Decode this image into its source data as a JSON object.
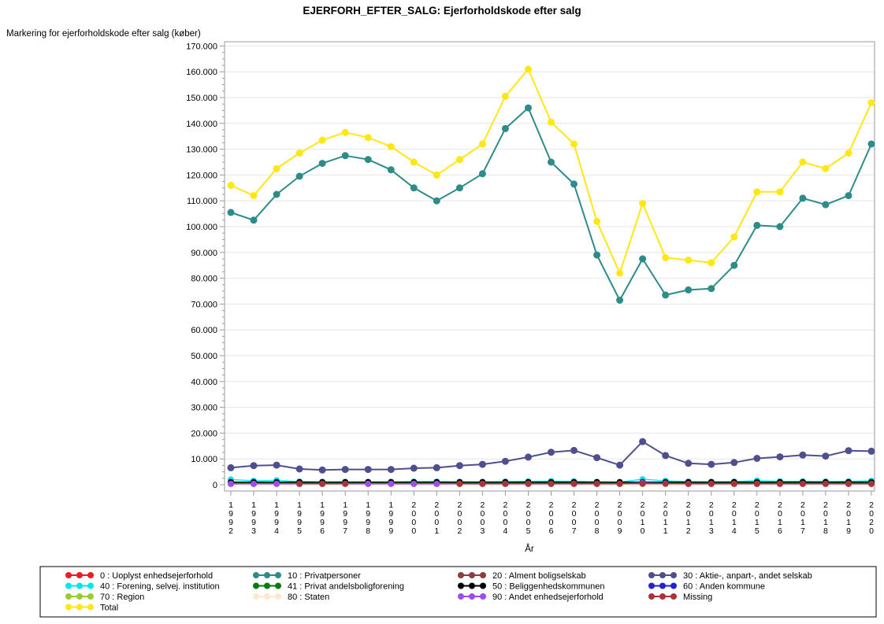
{
  "title": "EJERFORH_EFTER_SALG: Ejerforholdskode efter salg",
  "chart_data": {
    "type": "line",
    "title": "EJERFORH_EFTER_SALG: Ejerforholdskode efter salg",
    "xlabel": "År",
    "ylabel": "Markering for ejerforholdskode efter salg (køber)",
    "x": [
      1992,
      1993,
      1994,
      1995,
      1996,
      1997,
      1998,
      1999,
      2000,
      2001,
      2002,
      2003,
      2004,
      2005,
      2006,
      2007,
      2008,
      2009,
      2010,
      2011,
      2012,
      2013,
      2014,
      2015,
      2016,
      2017,
      2018,
      2019,
      2020
    ],
    "ylim": [
      0,
      170000
    ],
    "ytick_interval": 10000,
    "ytick_minor_interval": 2500,
    "ytick_labels": [
      "0",
      "10.000",
      "20.000",
      "30.000",
      "40.000",
      "50.000",
      "60.000",
      "70.000",
      "80.000",
      "90.000",
      "100.000",
      "110.000",
      "120.000",
      "130.000",
      "140.000",
      "150.000",
      "160.000",
      "170.000"
    ],
    "grid": "horizontal-major",
    "legend_position": "bottom",
    "frame": true,
    "colors": {
      "grid": "#e6e6e6",
      "frame": "#9a9a9a",
      "background": "#ffffff"
    },
    "series": [
      {
        "id": "0",
        "label": "0 : Uoplyst enhedsejerforhold",
        "color": "#ed1c24",
        "values": [
          400,
          400,
          400,
          400,
          400,
          400,
          400,
          400,
          400,
          400,
          400,
          400,
          400,
          400,
          400,
          400,
          400,
          400,
          400,
          400,
          400,
          400,
          400,
          400,
          400,
          400,
          400,
          400,
          400
        ]
      },
      {
        "id": "10",
        "label": "10 : Privatpersoner",
        "color": "#2d8c88",
        "values": [
          105500,
          102500,
          112500,
          119500,
          124500,
          127500,
          126000,
          122000,
          115000,
          110000,
          115000,
          120500,
          138000,
          146000,
          125000,
          116500,
          89000,
          71500,
          87500,
          73500,
          75500,
          76000,
          85000,
          100500,
          100000,
          111000,
          108500,
          112000,
          132000
        ]
      },
      {
        "id": "20",
        "label": "20 : Alment boligselskab",
        "color": "#8e3b42",
        "values": [
          500,
          500,
          500,
          500,
          500,
          500,
          500,
          500,
          500,
          500,
          500,
          500,
          500,
          500,
          500,
          500,
          500,
          500,
          500,
          500,
          500,
          500,
          500,
          500,
          500,
          500,
          500,
          500,
          500
        ]
      },
      {
        "id": "30",
        "label": "30 : Aktie-, anpart-, andet selskab",
        "color": "#4f4f8f",
        "values": [
          6600,
          7400,
          7600,
          6100,
          5700,
          5900,
          5900,
          5900,
          6400,
          6600,
          7400,
          7900,
          9100,
          10700,
          12600,
          13300,
          10500,
          7600,
          16700,
          11300,
          8300,
          7900,
          8600,
          10200,
          10800,
          11500,
          11100,
          13200,
          13000
        ]
      },
      {
        "id": "40",
        "label": "40 : Forening, selvej. institution",
        "color": "#00e5ee",
        "values": [
          2000,
          1500,
          1700,
          1200,
          1100,
          1100,
          1100,
          1100,
          1200,
          1200,
          1100,
          1100,
          1200,
          1300,
          1400,
          1300,
          1100,
          1000,
          2100,
          1500,
          1200,
          1100,
          1200,
          1600,
          1300,
          1300,
          1200,
          1300,
          1500
        ]
      },
      {
        "id": "41",
        "label": "41 : Privat andelsboligforening",
        "color": "#0b7a0b",
        "values": [
          600,
          600,
          600,
          600,
          600,
          600,
          600,
          600,
          600,
          600,
          600,
          600,
          600,
          600,
          600,
          600,
          600,
          600,
          600,
          600,
          600,
          600,
          600,
          600,
          600,
          600,
          600,
          600,
          600
        ]
      },
      {
        "id": "50",
        "label": "50 : Beliggenhedskommunen",
        "color": "#000000",
        "values": [
          1000,
          1000,
          1000,
          1000,
          1000,
          1000,
          1000,
          1000,
          1000,
          1000,
          1000,
          1000,
          1000,
          1000,
          1000,
          1000,
          1000,
          1000,
          1000,
          1000,
          1000,
          1000,
          1000,
          1000,
          1000,
          1000,
          1000,
          1000,
          1000
        ]
      },
      {
        "id": "60",
        "label": "60 : Anden kommune",
        "color": "#2323d3",
        "values": [
          300,
          300,
          300,
          300,
          300,
          300,
          300,
          300,
          300,
          300,
          300,
          300,
          300,
          300,
          300,
          300,
          300,
          300,
          300,
          300,
          300,
          300,
          300,
          300,
          300,
          300,
          300,
          300,
          300
        ]
      },
      {
        "id": "70",
        "label": "70 : Region",
        "color": "#9acd32",
        "values": [
          150,
          150,
          150,
          150,
          150,
          150,
          150,
          150,
          150,
          150,
          150,
          150,
          150,
          150,
          150,
          150,
          150,
          150,
          150,
          150,
          150,
          150,
          150,
          150,
          150,
          150,
          150,
          150,
          150
        ]
      },
      {
        "id": "80",
        "label": "80 : Staten",
        "color": "#ffe8cd",
        "values": [
          100,
          100,
          100,
          100,
          100,
          100,
          100,
          100,
          100,
          100,
          100,
          100,
          100,
          100,
          100,
          100,
          100,
          100,
          100,
          100,
          100,
          100,
          100,
          100,
          100,
          100,
          100,
          100,
          100
        ]
      },
      {
        "id": "90",
        "label": "90 : Andet enhedsejerforhold",
        "color": "#9b4fe8",
        "values": [
          350,
          350,
          350,
          350,
          350,
          350,
          350,
          350,
          350,
          350,
          350,
          350,
          350,
          350,
          350,
          350,
          350,
          350,
          700,
          500,
          350,
          350,
          350,
          350,
          350,
          350,
          350,
          350,
          350
        ]
      },
      {
        "id": "missing",
        "label": "Missing",
        "color": "#a93438",
        "values": [
          null,
          null,
          null,
          400,
          400,
          400,
          null,
          null,
          null,
          null,
          400,
          400,
          400,
          400,
          400,
          400,
          400,
          400,
          400,
          400,
          400,
          400,
          400,
          400,
          400,
          400,
          400,
          400,
          400
        ]
      },
      {
        "id": "total",
        "label": "Total",
        "color": "#ffe714",
        "values": [
          116000,
          112000,
          122500,
          128500,
          133500,
          136500,
          134500,
          131000,
          125000,
          120000,
          126000,
          132000,
          150500,
          161000,
          140500,
          132000,
          102000,
          82000,
          109000,
          88000,
          87000,
          86000,
          96000,
          113500,
          113500,
          125000,
          122500,
          128500,
          148000
        ]
      }
    ],
    "legend_rows": [
      [
        "0",
        "10",
        "20",
        "30"
      ],
      [
        "40",
        "41",
        "50",
        "60"
      ],
      [
        "70",
        "80",
        "90",
        "missing"
      ],
      [
        "total"
      ]
    ]
  }
}
